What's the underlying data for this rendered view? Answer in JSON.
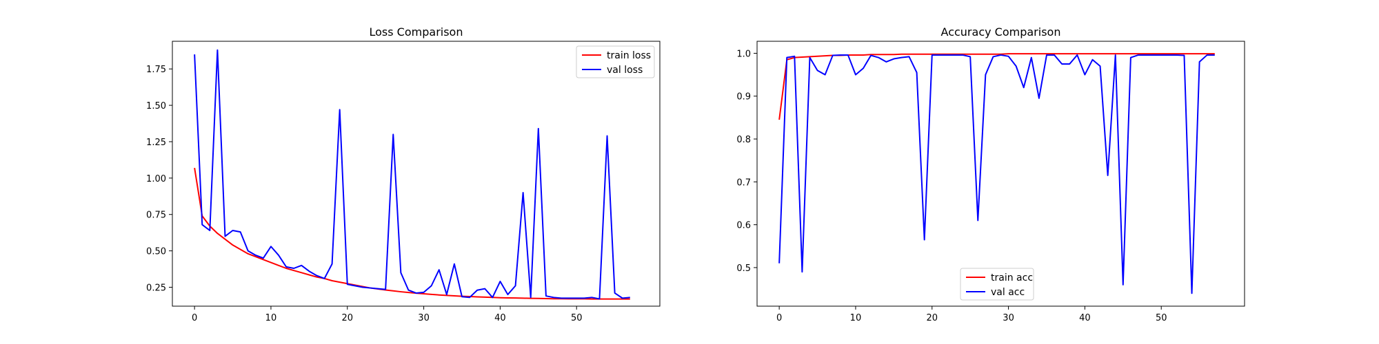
{
  "chart_data": [
    {
      "type": "line",
      "title": "Loss Comparison",
      "xlabel": "",
      "ylabel": "",
      "xlim": [
        -2.9,
        60.9
      ],
      "ylim": [
        0.12,
        1.94
      ],
      "xticks": [
        0,
        10,
        20,
        30,
        40,
        50
      ],
      "yticks": [
        0.25,
        0.5,
        0.75,
        1.0,
        1.25,
        1.5,
        1.75
      ],
      "ytick_labels": [
        "0.25",
        "0.50",
        "0.75",
        "1.00",
        "1.25",
        "1.50",
        "1.75"
      ],
      "grid": false,
      "legend": "top-right",
      "series": [
        {
          "name": "train loss",
          "color": "#ff0000",
          "values": [
            1.07,
            0.74,
            0.67,
            0.62,
            0.58,
            0.54,
            0.51,
            0.48,
            0.46,
            0.44,
            0.42,
            0.4,
            0.38,
            0.365,
            0.35,
            0.335,
            0.32,
            0.31,
            0.295,
            0.285,
            0.275,
            0.265,
            0.255,
            0.245,
            0.238,
            0.231,
            0.225,
            0.219,
            0.214,
            0.209,
            0.205,
            0.201,
            0.197,
            0.194,
            0.191,
            0.188,
            0.186,
            0.184,
            0.182,
            0.18,
            0.178,
            0.177,
            0.176,
            0.175,
            0.174,
            0.173,
            0.172,
            0.171,
            0.171,
            0.17,
            0.17,
            0.17,
            0.169,
            0.169,
            0.169,
            0.169,
            0.169,
            0.169
          ]
        },
        {
          "name": "val loss",
          "color": "#0000ff",
          "values": [
            1.85,
            0.68,
            0.64,
            1.88,
            0.6,
            0.64,
            0.63,
            0.5,
            0.47,
            0.45,
            0.53,
            0.47,
            0.39,
            0.38,
            0.4,
            0.36,
            0.33,
            0.31,
            0.41,
            1.47,
            0.27,
            0.26,
            0.25,
            0.245,
            0.24,
            0.235,
            1.3,
            0.35,
            0.23,
            0.21,
            0.215,
            0.26,
            0.37,
            0.2,
            0.41,
            0.185,
            0.18,
            0.23,
            0.24,
            0.18,
            0.29,
            0.2,
            0.26,
            0.9,
            0.18,
            1.34,
            0.19,
            0.18,
            0.175,
            0.175,
            0.175,
            0.175,
            0.18,
            0.17,
            1.29,
            0.21,
            0.175,
            0.18
          ]
        }
      ]
    },
    {
      "type": "line",
      "title": "Accuracy Comparison",
      "xlabel": "",
      "ylabel": "",
      "xlim": [
        -2.9,
        60.9
      ],
      "ylim": [
        0.41,
        1.028
      ],
      "xticks": [
        0,
        10,
        20,
        30,
        40,
        50
      ],
      "yticks": [
        0.5,
        0.6,
        0.7,
        0.8,
        0.9,
        1.0
      ],
      "ytick_labels": [
        "0.5",
        "0.6",
        "0.7",
        "0.8",
        "0.9",
        "1.0"
      ],
      "grid": false,
      "legend": "bottom-center",
      "series": [
        {
          "name": "train acc",
          "color": "#ff0000",
          "values": [
            0.845,
            0.985,
            0.99,
            0.991,
            0.992,
            0.993,
            0.994,
            0.995,
            0.995,
            0.996,
            0.996,
            0.996,
            0.997,
            0.997,
            0.997,
            0.997,
            0.998,
            0.998,
            0.998,
            0.998,
            0.998,
            0.998,
            0.998,
            0.998,
            0.998,
            0.998,
            0.998,
            0.998,
            0.998,
            0.998,
            0.999,
            0.999,
            0.999,
            0.999,
            0.999,
            0.999,
            0.999,
            0.999,
            0.999,
            0.999,
            0.999,
            0.999,
            0.999,
            0.999,
            0.999,
            0.999,
            0.999,
            0.999,
            0.999,
            0.999,
            0.999,
            0.999,
            0.999,
            0.999,
            0.999,
            0.999,
            0.999,
            0.999
          ]
        },
        {
          "name": "val acc",
          "color": "#0000ff",
          "values": [
            0.51,
            0.99,
            0.993,
            0.49,
            0.99,
            0.96,
            0.95,
            0.995,
            0.996,
            0.996,
            0.95,
            0.965,
            0.995,
            0.99,
            0.98,
            0.987,
            0.99,
            0.992,
            0.955,
            0.565,
            0.996,
            0.996,
            0.996,
            0.996,
            0.996,
            0.992,
            0.61,
            0.95,
            0.992,
            0.996,
            0.993,
            0.97,
            0.92,
            0.99,
            0.895,
            0.996,
            0.996,
            0.975,
            0.975,
            0.996,
            0.95,
            0.985,
            0.97,
            0.715,
            0.996,
            0.46,
            0.99,
            0.996,
            0.996,
            0.996,
            0.996,
            0.996,
            0.996,
            0.995,
            0.44,
            0.98,
            0.996,
            0.996
          ]
        }
      ]
    }
  ]
}
